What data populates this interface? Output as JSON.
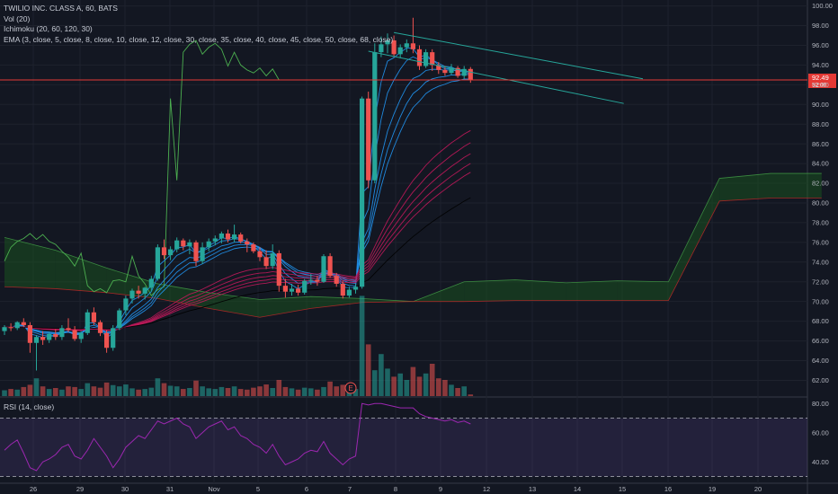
{
  "legend": {
    "symbol": "TWILIO INC. CLASS A, 60, BATS",
    "volume": "Vol (20)",
    "ichimoku": "Ichimoku (20, 60, 120, 30)",
    "ema": "EMA (3, close, 5, close, 8, close, 10, close, 12, close, 30, close, 35, close, 40, close, 45, close, 50, close, 68, close)",
    "rsi": "RSI (14, close)"
  },
  "badges": {
    "price": "92.49",
    "countdown": "52:00",
    "earnings": "E"
  },
  "colors": {
    "background": "#131722",
    "up": "#26a69a",
    "down": "#ef5350",
    "ema_fast": "#2196f3",
    "ema_slow": "#c2185b",
    "cloud_bull": "#1b5e20",
    "cloud_bear": "#7b1f2a",
    "rsi_line": "#9c27b0",
    "price_line": "#e53935"
  },
  "chart_data": {
    "type": "candlestick",
    "price_axis": {
      "ticks": [
        "62.00",
        "64.00",
        "66.00",
        "68.00",
        "70.00",
        "72.00",
        "74.00",
        "76.00",
        "78.00",
        "80.00",
        "82.00",
        "84.00",
        "86.00",
        "88.00",
        "90.00",
        "92.00",
        "94.00",
        "96.00",
        "98.00",
        "100.00"
      ],
      "range": [
        60.4,
        100.6
      ]
    },
    "rsi_axis": {
      "ticks": [
        "40.00",
        "60.00",
        "80.00"
      ],
      "range": [
        26,
        82
      ],
      "bands": [
        30,
        70
      ]
    },
    "time_axis": [
      "26",
      "29",
      "30",
      "31",
      "Nov",
      "5",
      "6",
      "7",
      "8",
      "9",
      "12",
      "13",
      "14",
      "15",
      "16",
      "19",
      "20"
    ],
    "last_price": 92.49,
    "candles": [
      [
        67.0,
        67.6,
        66.6,
        67.4
      ],
      [
        67.4,
        67.8,
        67.0,
        67.3
      ],
      [
        67.3,
        68.0,
        67.1,
        67.9
      ],
      [
        67.9,
        68.3,
        67.4,
        67.6
      ],
      [
        67.6,
        67.9,
        64.8,
        65.8
      ],
      [
        65.8,
        66.6,
        63.0,
        66.4
      ],
      [
        66.4,
        67.0,
        65.6,
        66.1
      ],
      [
        66.1,
        66.9,
        65.8,
        66.7
      ],
      [
        66.7,
        67.2,
        66.1,
        66.4
      ],
      [
        66.4,
        67.6,
        66.1,
        67.3
      ],
      [
        67.3,
        68.3,
        66.9,
        67.1
      ],
      [
        67.1,
        67.5,
        66.0,
        66.2
      ],
      [
        66.2,
        67.0,
        65.8,
        66.8
      ],
      [
        66.8,
        69.2,
        66.6,
        68.9
      ],
      [
        68.9,
        69.4,
        67.6,
        67.9
      ],
      [
        67.9,
        68.1,
        66.5,
        66.8
      ],
      [
        66.8,
        67.1,
        64.8,
        65.3
      ],
      [
        65.3,
        67.6,
        65.0,
        67.3
      ],
      [
        67.3,
        69.3,
        67.1,
        69.1
      ],
      [
        69.1,
        70.6,
        68.6,
        70.3
      ],
      [
        70.3,
        71.3,
        69.8,
        71.1
      ],
      [
        71.1,
        71.6,
        70.3,
        70.8
      ],
      [
        70.8,
        71.5,
        70.2,
        71.4
      ],
      [
        71.4,
        72.6,
        71.0,
        72.3
      ],
      [
        72.3,
        75.8,
        72.1,
        75.5
      ],
      [
        75.5,
        76.3,
        74.3,
        74.7
      ],
      [
        74.7,
        75.6,
        74.2,
        75.3
      ],
      [
        75.3,
        76.5,
        75.0,
        76.2
      ],
      [
        76.2,
        76.4,
        75.2,
        75.6
      ],
      [
        75.6,
        76.3,
        74.8,
        76.0
      ],
      [
        76.0,
        76.2,
        73.6,
        74.1
      ],
      [
        74.1,
        76.0,
        73.8,
        75.5
      ],
      [
        75.5,
        76.4,
        75.1,
        76.1
      ],
      [
        76.1,
        76.7,
        75.7,
        76.4
      ],
      [
        76.4,
        77.1,
        75.9,
        76.9
      ],
      [
        76.9,
        77.3,
        76.0,
        76.3
      ],
      [
        76.3,
        77.8,
        76.0,
        76.8
      ],
      [
        76.8,
        77.0,
        75.9,
        76.1
      ],
      [
        76.1,
        76.4,
        75.0,
        75.8
      ],
      [
        75.8,
        76.0,
        74.9,
        75.1
      ],
      [
        75.1,
        75.5,
        74.1,
        74.5
      ],
      [
        74.5,
        75.2,
        73.3,
        73.6
      ],
      [
        73.6,
        75.8,
        73.3,
        74.9
      ],
      [
        74.9,
        75.2,
        71.0,
        71.6
      ],
      [
        71.6,
        72.3,
        70.4,
        71.0
      ],
      [
        71.0,
        71.8,
        70.6,
        71.3
      ],
      [
        71.3,
        71.7,
        70.6,
        70.9
      ],
      [
        70.9,
        72.3,
        70.7,
        72.1
      ],
      [
        72.1,
        72.8,
        71.7,
        72.2
      ],
      [
        72.2,
        72.6,
        71.6,
        72.0
      ],
      [
        72.0,
        74.8,
        71.9,
        74.6
      ],
      [
        74.6,
        74.9,
        72.4,
        72.6
      ],
      [
        72.6,
        72.9,
        71.5,
        71.8
      ],
      [
        71.8,
        72.1,
        70.3,
        70.6
      ],
      [
        70.6,
        71.5,
        70.4,
        71.2
      ],
      [
        71.2,
        71.8,
        70.8,
        71.5
      ],
      [
        71.5,
        90.8,
        71.3,
        90.6
      ],
      [
        90.6,
        91.3,
        81.5,
        82.3
      ],
      [
        82.3,
        96.2,
        82.0,
        95.3
      ],
      [
        95.3,
        96.9,
        94.8,
        96.1
      ],
      [
        96.1,
        97.2,
        95.2,
        96.5
      ],
      [
        96.5,
        97.0,
        94.8,
        95.1
      ],
      [
        95.1,
        96.1,
        94.7,
        95.8
      ],
      [
        95.8,
        96.6,
        95.3,
        96.2
      ],
      [
        96.2,
        98.8,
        95.2,
        95.6
      ],
      [
        95.6,
        96.0,
        93.5,
        93.9
      ],
      [
        93.9,
        95.6,
        93.7,
        95.3
      ],
      [
        95.3,
        95.6,
        93.4,
        94.0
      ],
      [
        94.0,
        94.3,
        93.1,
        93.5
      ],
      [
        93.5,
        93.9,
        92.9,
        93.2
      ],
      [
        93.2,
        94.1,
        93.0,
        93.7
      ],
      [
        93.7,
        93.9,
        92.7,
        92.9
      ],
      [
        92.9,
        93.9,
        92.6,
        93.6
      ],
      [
        93.6,
        93.8,
        92.2,
        92.49
      ]
    ],
    "volume_relative": [
      0.18,
      0.22,
      0.2,
      0.28,
      0.35,
      0.55,
      0.3,
      0.22,
      0.25,
      0.2,
      0.3,
      0.28,
      0.22,
      0.4,
      0.3,
      0.26,
      0.42,
      0.34,
      0.3,
      0.36,
      0.24,
      0.2,
      0.22,
      0.26,
      0.55,
      0.4,
      0.32,
      0.3,
      0.22,
      0.25,
      0.48,
      0.3,
      0.24,
      0.22,
      0.28,
      0.25,
      0.3,
      0.22,
      0.2,
      0.26,
      0.3,
      0.36,
      0.25,
      0.5,
      0.28,
      0.24,
      0.2,
      0.26,
      0.24,
      0.2,
      0.28,
      0.45,
      0.3,
      0.35,
      0.25,
      0.22,
      3.1,
      1.6,
      0.8,
      1.3,
      0.85,
      0.6,
      0.7,
      0.5,
      0.9,
      0.6,
      0.7,
      1.0,
      0.55,
      0.5,
      0.35,
      0.25,
      0.3,
      0.05
    ],
    "rsi_values": [
      48,
      52,
      55,
      46,
      36,
      34,
      40,
      42,
      45,
      50,
      52,
      44,
      42,
      48,
      56,
      50,
      44,
      36,
      42,
      50,
      54,
      58,
      56,
      62,
      68,
      66,
      68,
      70,
      66,
      64,
      56,
      60,
      64,
      66,
      68,
      62,
      64,
      58,
      56,
      52,
      50,
      46,
      52,
      44,
      38,
      40,
      42,
      46,
      48,
      47,
      54,
      46,
      42,
      38,
      42,
      44,
      80,
      79,
      80,
      80,
      79,
      78,
      77,
      77,
      77,
      73,
      71,
      70,
      69,
      68,
      69,
      67,
      68,
      66
    ],
    "ichimoku_cloud": {
      "x_index": [
        0,
        8,
        16,
        24,
        32,
        40,
        48,
        56,
        64,
        72,
        80,
        88,
        96,
        104,
        112,
        120,
        128
      ],
      "span_a": [
        76.5,
        75.2,
        73.4,
        71.8,
        70.9,
        70.2,
        70.5,
        70.3,
        70.0,
        72.0,
        72.2,
        71.9,
        72.1,
        72.0,
        82.5,
        83.0,
        83.0
      ],
      "span_b": [
        71.5,
        71.3,
        70.9,
        70.3,
        69.3,
        68.4,
        69.3,
        69.9,
        70.0,
        70.0,
        70.1,
        70.1,
        70.1,
        70.1,
        80.2,
        80.5,
        80.5
      ]
    },
    "ema_fast_endpoints": [
      94.5,
      93.4,
      92.5,
      91.8,
      91.5
    ],
    "ema_slow_endpoints": [
      85.6,
      84.4,
      83.6,
      82.9,
      82.2,
      79.2
    ],
    "trendlines": [
      {
        "from": [
          61,
          97.3
        ],
        "to": [
          100,
          92.6
        ]
      },
      {
        "from": [
          57,
          95.4
        ],
        "to": [
          97,
          90.1
        ]
      }
    ]
  }
}
